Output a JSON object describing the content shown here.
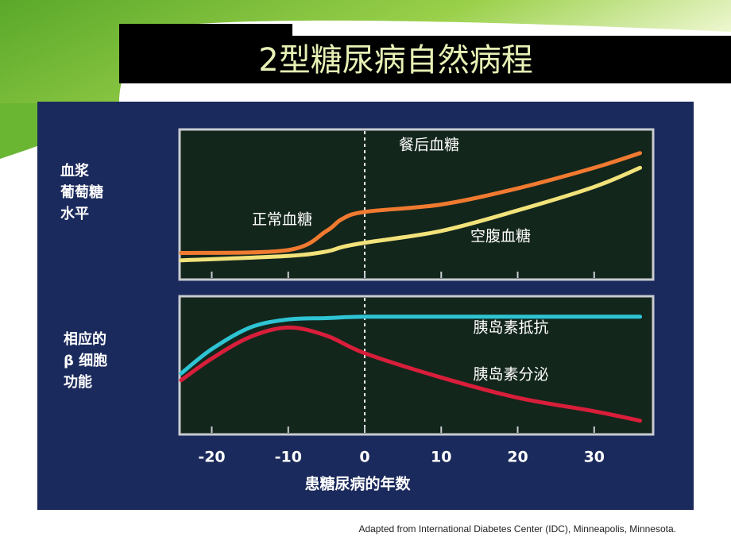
{
  "title": "2型糖尿病自然病程",
  "source": "Adapted  from International  Diabetes Center (IDC), Minneapolis,  Minnesota.",
  "chart_data": [
    {
      "type": "line",
      "ylabel": [
        "血浆",
        "葡萄糖",
        "水平"
      ],
      "annotation": "正常血糖",
      "x": [
        -24,
        -10,
        -5,
        -3,
        0,
        10,
        20,
        30,
        36
      ],
      "series": [
        {
          "name": "餐后血糖",
          "color": "#f07a30",
          "values": [
            17,
            19,
            32,
            40,
            45,
            50,
            61,
            75,
            85
          ]
        },
        {
          "name": "空腹血糖",
          "color": "#f2e27a",
          "values": [
            12,
            15,
            18,
            21,
            24,
            32,
            46,
            62,
            75
          ]
        }
      ],
      "xlim": [
        -24,
        37.5
      ],
      "ylim": [
        0,
        100
      ],
      "vline": 0
    },
    {
      "type": "line",
      "ylabel": [
        "相应的",
        "β 细胞",
        "功能"
      ],
      "xlabel": "患糖尿病的年数",
      "x": [
        -24,
        -20,
        -15,
        -10,
        -5,
        0,
        10,
        20,
        30,
        36
      ],
      "series": [
        {
          "name": "胰岛素抵抗",
          "color": "#2ec4d4",
          "values": [
            44,
            62,
            78,
            84,
            85,
            86,
            86,
            86,
            86,
            86
          ]
        },
        {
          "name": "胰岛素分泌",
          "color": "#d81e3a",
          "values": [
            39,
            55,
            71,
            78,
            72,
            59,
            41,
            26,
            16,
            9
          ]
        }
      ],
      "xlim": [
        -24,
        37.5
      ],
      "ylim": [
        0,
        100
      ],
      "vline": 0,
      "xticks": [
        -20,
        -10,
        0,
        10,
        20,
        30
      ]
    }
  ]
}
